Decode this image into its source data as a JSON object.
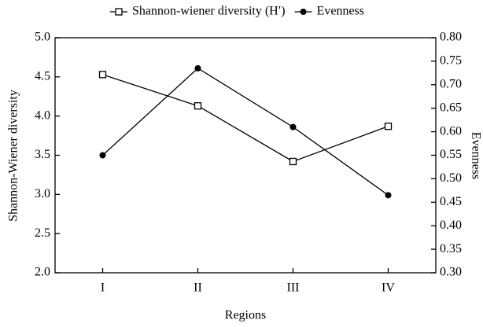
{
  "chart_data": {
    "type": "line",
    "x_label": "Regions",
    "y_label": "Shannon-Wiener diversity",
    "y2_label": "Evenness",
    "categories": [
      "I",
      "II",
      "III",
      "IV"
    ],
    "series": [
      {
        "name": "Shannon-wiener diversity (H′)",
        "color": "#000000",
        "marker": "open-square",
        "values": [
          4.53,
          4.13,
          3.42,
          3.87
        ]
      },
      {
        "name": "Evenness",
        "color": "#000000",
        "marker": "filled-circle",
        "axis": "y2",
        "values": [
          0.55,
          0.735,
          0.61,
          0.465
        ]
      }
    ],
    "ylim": [
      2,
      5
    ],
    "yticks": [
      {
        "value": 2,
        "label": "2.0"
      },
      2.5,
      {
        "value": 3,
        "label": "3.0"
      },
      3.5,
      {
        "value": 4,
        "label": "4.0"
      },
      4.5,
      {
        "value": 5,
        "label": "5.0"
      }
    ],
    "y2lim": [
      0.3,
      0.8
    ],
    "y2ticks": [
      {
        "value": 0.3,
        "label": "0.30"
      },
      0.35,
      {
        "value": 0.4,
        "label": "0.40"
      },
      0.45,
      {
        "value": 0.5,
        "label": "0.50"
      },
      0.55,
      {
        "value": 0.6,
        "label": "0.60"
      },
      0.65,
      {
        "value": 0.7,
        "label": "0.70"
      },
      0.75,
      {
        "value": 0.8,
        "label": "0.80"
      }
    ],
    "grid": false,
    "legend": "top"
  }
}
